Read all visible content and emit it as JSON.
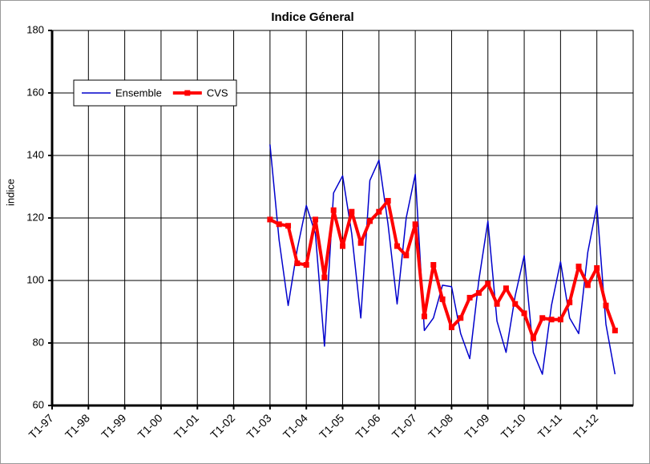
{
  "chart_data": {
    "type": "line",
    "title": "Indice Géneral",
    "y_label": "indice",
    "categories": [
      "T1-97",
      null,
      null,
      null,
      "T1-98",
      null,
      null,
      null,
      "T1-99",
      null,
      null,
      null,
      "T1-00",
      null,
      null,
      null,
      "T1-01",
      null,
      null,
      null,
      "T1-02",
      null,
      null,
      null,
      "T1-03",
      null,
      null,
      null,
      "T1-04",
      null,
      null,
      null,
      "T1-05",
      null,
      null,
      null,
      "T1-06",
      null,
      null,
      null,
      "T1-07",
      null,
      null,
      null,
      "T1-08",
      null,
      null,
      null,
      "T1-09",
      null,
      null,
      null,
      "T1-10",
      null,
      null,
      null,
      "T1-11",
      null,
      null,
      null,
      "T1-12",
      null,
      null,
      null
    ],
    "series": [
      {
        "name": "Ensemble",
        "color": "#0000cc",
        "values": [
          null,
          null,
          null,
          null,
          null,
          null,
          null,
          null,
          null,
          null,
          null,
          null,
          null,
          null,
          null,
          null,
          null,
          null,
          null,
          null,
          null,
          null,
          null,
          null,
          143.5,
          113,
          92,
          110,
          124,
          115,
          79,
          128,
          133.5,
          115,
          88,
          132,
          138.5,
          118,
          92.5,
          120,
          134,
          84,
          88,
          98.5,
          98,
          83,
          75,
          100,
          119,
          87,
          77,
          95,
          108,
          77,
          70,
          92,
          106,
          88,
          83,
          109,
          124,
          86,
          70,
          null
        ]
      },
      {
        "name": "CVS",
        "color": "#ff0000",
        "marker": "square",
        "values": [
          null,
          null,
          null,
          null,
          null,
          null,
          null,
          null,
          null,
          null,
          null,
          null,
          null,
          null,
          null,
          null,
          null,
          null,
          null,
          null,
          null,
          null,
          null,
          null,
          119.5,
          118,
          117.5,
          105.5,
          105,
          119.5,
          101,
          122.5,
          111,
          122,
          112,
          119,
          122,
          125.5,
          111,
          108,
          118,
          88.5,
          105,
          94,
          85,
          88,
          94.5,
          96,
          99,
          92.5,
          97.5,
          92.5,
          89.5,
          81.5,
          88,
          87.5,
          87.5,
          93,
          104.5,
          98.5,
          104,
          92,
          84,
          null
        ]
      }
    ],
    "ylim": [
      60,
      180
    ],
    "yticks": [
      60,
      80,
      100,
      120,
      140,
      160,
      180
    ],
    "grid": true,
    "legend": "upper left"
  }
}
